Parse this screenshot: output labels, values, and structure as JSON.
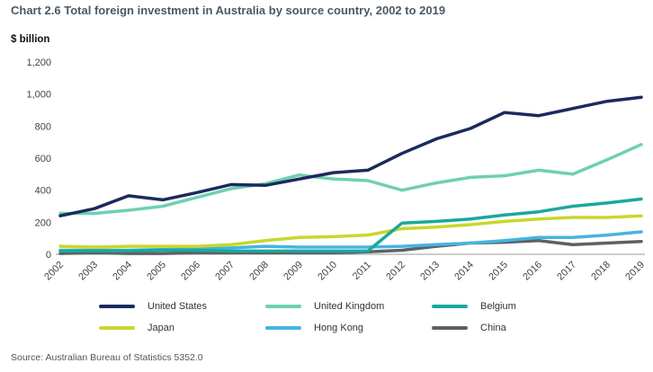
{
  "title": "Chart 2.6 Total foreign investment in Australia by source country, 2002 to 2019",
  "unit_label": "$ billion",
  "source": "Source: Australian Bureau of Statistics 5352.0",
  "chart_data": {
    "type": "line",
    "title": "Chart 2.6 Total foreign investment in Australia by source country, 2002 to 2019",
    "ylabel": "$ billion",
    "x": [
      "2002",
      "2003",
      "2004",
      "2005",
      "2006",
      "2007",
      "2008",
      "2009",
      "2010",
      "2011",
      "2012",
      "2013",
      "2014",
      "2015",
      "2016",
      "2017",
      "2018",
      "2019"
    ],
    "yticks": [
      "0",
      "200",
      "400",
      "600",
      "800",
      "1,000",
      "1,200"
    ],
    "ylim": [
      0,
      1200
    ],
    "grid": false,
    "legend_position": "bottom",
    "series": [
      {
        "name": "United States",
        "color": "#1b2a5e",
        "values": [
          240,
          285,
          365,
          340,
          385,
          435,
          430,
          470,
          510,
          525,
          630,
          720,
          785,
          885,
          865,
          910,
          955,
          980
        ]
      },
      {
        "name": "United Kingdom",
        "color": "#6ecfb4",
        "values": [
          255,
          255,
          275,
          300,
          355,
          410,
          440,
          495,
          470,
          460,
          400,
          445,
          480,
          490,
          525,
          500,
          590,
          685
        ]
      },
      {
        "name": "Belgium",
        "color": "#1aa89e",
        "values": [
          20,
          22,
          22,
          25,
          25,
          20,
          20,
          20,
          20,
          20,
          195,
          205,
          220,
          245,
          265,
          300,
          320,
          345
        ]
      },
      {
        "name": "Japan",
        "color": "#c8d72c",
        "values": [
          50,
          45,
          50,
          50,
          50,
          60,
          85,
          105,
          110,
          120,
          160,
          170,
          185,
          205,
          220,
          230,
          230,
          240
        ]
      },
      {
        "name": "Hong Kong",
        "color": "#45b4e0",
        "values": [
          25,
          25,
          25,
          30,
          35,
          40,
          50,
          45,
          45,
          45,
          50,
          60,
          70,
          85,
          105,
          105,
          120,
          140
        ]
      },
      {
        "name": "China",
        "color": "#5d6166",
        "values": [
          5,
          10,
          5,
          5,
          10,
          10,
          10,
          10,
          10,
          15,
          25,
          50,
          70,
          75,
          85,
          60,
          70,
          80
        ]
      }
    ]
  }
}
